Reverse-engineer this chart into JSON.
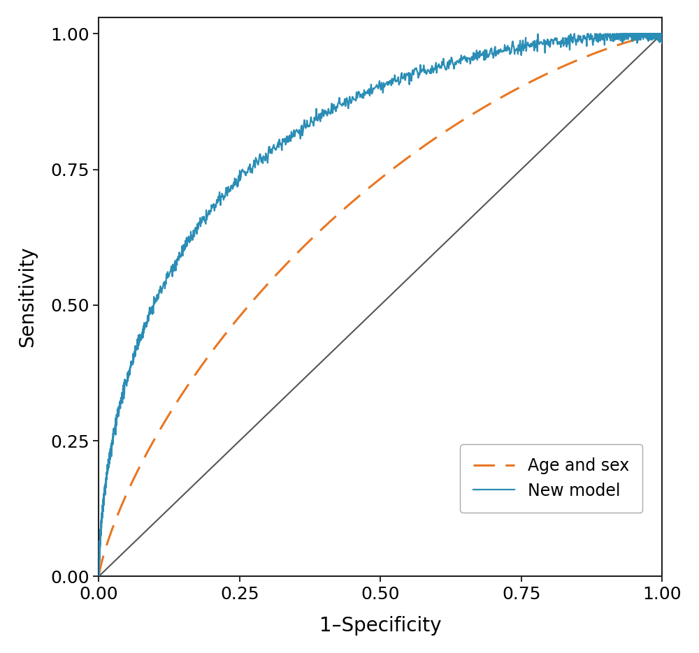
{
  "title": "",
  "xlabel": "1–Specificity",
  "ylabel": "Sensitivity",
  "xlim": [
    0.0,
    1.0
  ],
  "ylim": [
    0.0,
    1.03
  ],
  "xticks": [
    0.0,
    0.25,
    0.5,
    0.75,
    1.0
  ],
  "yticks": [
    0.0,
    0.25,
    0.5,
    0.75,
    1.0
  ],
  "diagonal_color": "#555555",
  "new_model_color": "#2A8DB5",
  "age_sex_color": "#E87722",
  "new_model_linewidth": 1.6,
  "age_sex_linewidth": 2.2,
  "background_color": "#ffffff",
  "legend_labels": [
    "Age and sex",
    "New model"
  ],
  "figsize": [
    10.0,
    9.35
  ],
  "dpi": 100,
  "new_model_auc": 0.82,
  "age_sex_auc": 0.67,
  "tick_fontsize": 18,
  "label_fontsize": 20
}
